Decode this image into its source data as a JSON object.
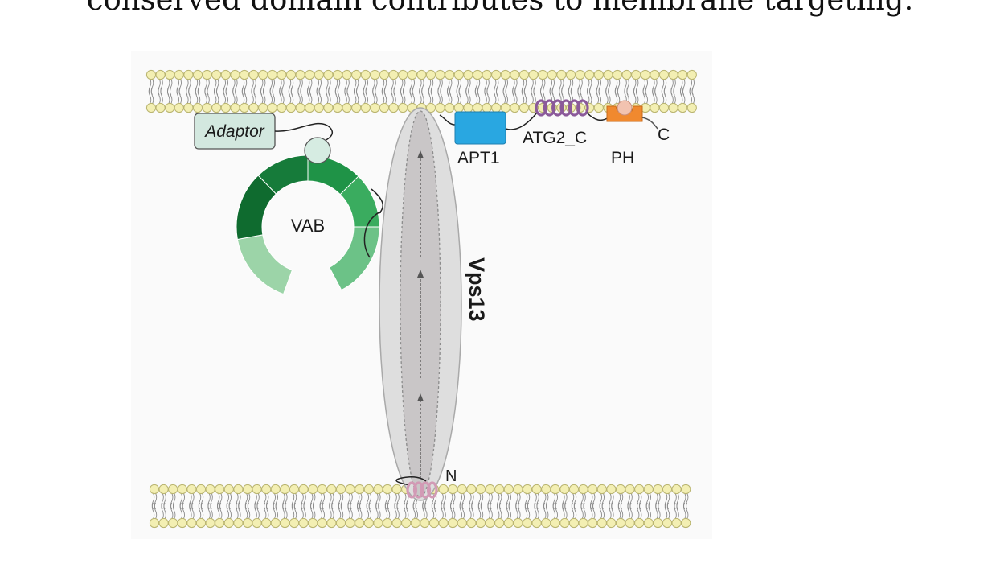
{
  "caption": {
    "visible_text": "conserved domain contributes to membrane targeting."
  },
  "diagram": {
    "labels": {
      "adaptor": "Adaptor",
      "vab": "VAB",
      "apt1": "APT1",
      "atg2c": "ATG2_C",
      "ph": "PH",
      "c_term": "C",
      "n_term": "N",
      "protein": "Vps13"
    },
    "colors": {
      "lipid_head": "#f3efb3",
      "lipid_head_stroke": "#b9b470",
      "tail": "#8c8c8c",
      "adaptor_fill": "#d3e8df",
      "apt1": "#29a7e1",
      "ph": "#f0892f",
      "helix": "#8b5a9a",
      "n_helix": "#d29ab5",
      "rod_outer": "#dcdcdc",
      "rod_inner": "#c8c5c6",
      "vab_segments": [
        "#0f6b2f",
        "#167b3a",
        "#1f9347",
        "#3aac5f",
        "#6cc287",
        "#9cd4a8"
      ]
    }
  }
}
